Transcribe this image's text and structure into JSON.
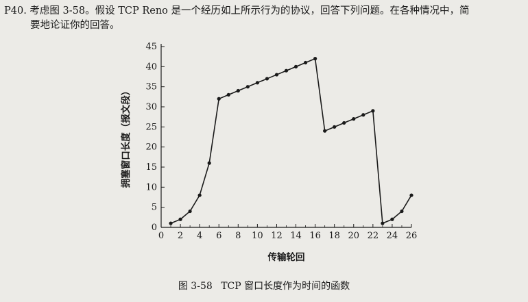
{
  "problem": {
    "line1": "P40. 考虑图 3-58。假设 TCP Reno 是一个经历如上所示行为的协议，回答下列问题。在各种情况中，简",
    "line2": "要地论证你的回答。"
  },
  "figure": {
    "caption_number": "图 3-58",
    "caption_text": "TCP 窗口长度作为时间的函数"
  },
  "chart_data": {
    "type": "line",
    "title": "",
    "xlabel": "传输轮回",
    "ylabel": "拥塞窗口长度（报文段）",
    "xlim": [
      0,
      26
    ],
    "ylim": [
      0,
      45
    ],
    "xticks": [
      0,
      2,
      4,
      6,
      8,
      10,
      12,
      14,
      16,
      18,
      20,
      22,
      24,
      26
    ],
    "yticks": [
      0,
      5,
      10,
      15,
      20,
      25,
      30,
      35,
      40,
      45
    ],
    "grid": false,
    "series": [
      {
        "x": [
          1,
          2,
          3,
          4,
          5,
          6,
          7,
          8,
          9,
          10,
          11,
          12,
          13,
          14,
          15,
          16,
          17,
          18,
          19,
          20,
          21,
          22,
          23,
          24,
          25,
          26
        ],
        "y": [
          1,
          2,
          4,
          8,
          16,
          32,
          33,
          34,
          35,
          36,
          37,
          38,
          39,
          40,
          41,
          42,
          24,
          25,
          26,
          27,
          28,
          29,
          1,
          2,
          4,
          8
        ],
        "color": "#1a1a1a"
      }
    ]
  }
}
